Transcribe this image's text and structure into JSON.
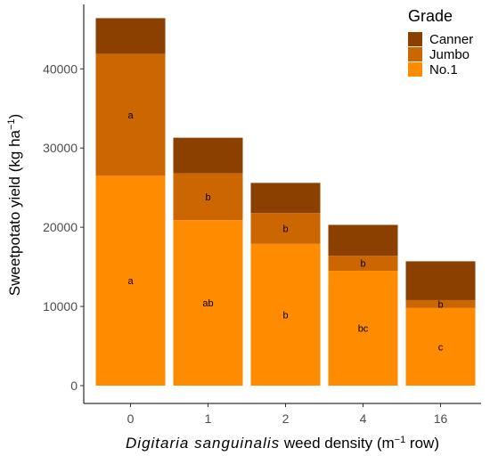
{
  "chart_data": {
    "type": "bar",
    "stacked": true,
    "categories": [
      "0",
      "1",
      "2",
      "4",
      "16"
    ],
    "series": [
      {
        "name": "No.1",
        "color": "#FF8C00",
        "values": [
          26500,
          20900,
          17900,
          14500,
          9800
        ],
        "letters": [
          "a",
          "ab",
          "b",
          "bc",
          "c"
        ]
      },
      {
        "name": "Jumbo",
        "color": "#CC6600",
        "values": [
          15400,
          5900,
          3900,
          1900,
          1000
        ],
        "letters": [
          "a",
          "b",
          "b",
          "b",
          "b"
        ]
      },
      {
        "name": "Canner",
        "color": "#8B4000",
        "values": [
          4500,
          4500,
          3800,
          3900,
          4900
        ],
        "letters": [
          "",
          "",
          "",
          "",
          ""
        ]
      }
    ],
    "xlabel": {
      "italic": "Digitaria sanguinalis",
      "rest": " weed density (m",
      "sup": "−1",
      "end": " row)"
    },
    "ylabel": {
      "text": "Sweetpotato yield (kg ha",
      "sup": "−1",
      "end": ")"
    },
    "yticks": [
      0,
      10000,
      20000,
      30000,
      40000
    ],
    "ylim": [
      0,
      48000
    ],
    "grid": false,
    "legend": {
      "title": "Grade",
      "placement": "top-right",
      "order": [
        "Canner",
        "Jumbo",
        "No.1"
      ]
    }
  }
}
